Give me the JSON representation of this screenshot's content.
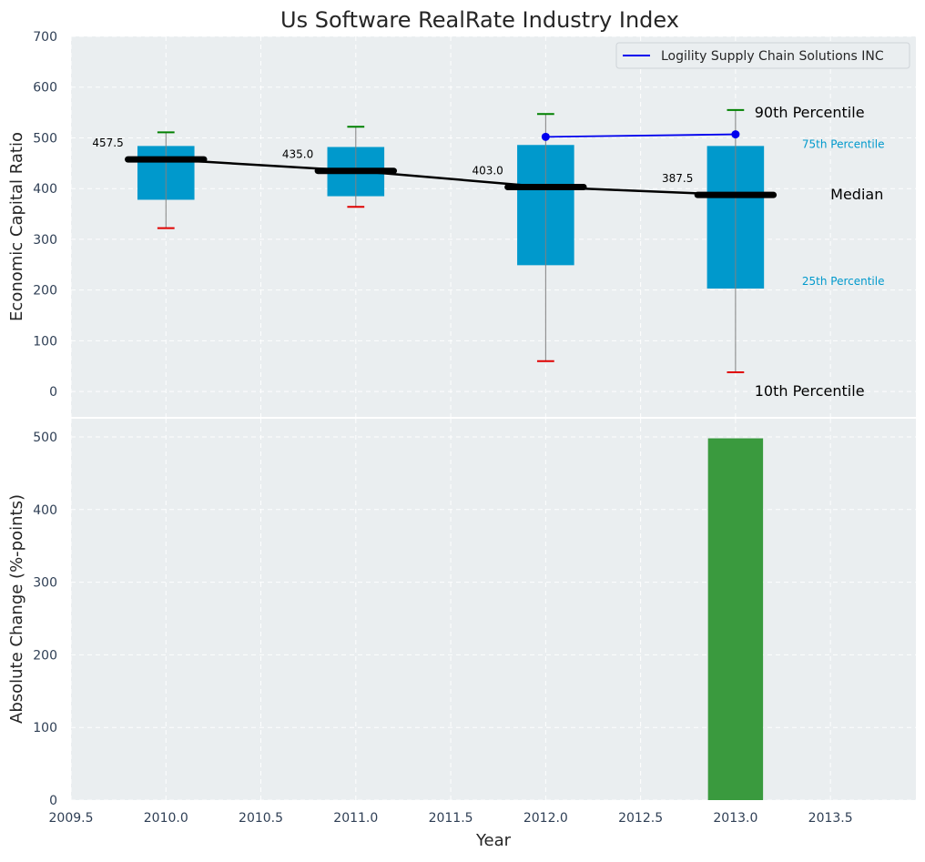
{
  "chart_data": [
    {
      "type": "box",
      "title": "Us Software RealRate Industry Index",
      "ylabel": "Economic Capital Ratio",
      "xlim": [
        2009.5,
        2013.95
      ],
      "ylim": [
        -50,
        700
      ],
      "yticks": [
        0,
        100,
        200,
        300,
        400,
        500,
        600,
        700
      ],
      "grid": true,
      "legend": {
        "position": "top-right",
        "entries": [
          "Logility Supply Chain Solutions INC"
        ]
      },
      "boxes": [
        {
          "x": 2010,
          "p10": 322,
          "p25": 378,
          "median": 457.5,
          "p75": 484,
          "p90": 511
        },
        {
          "x": 2011,
          "p10": 364,
          "p25": 385,
          "median": 435.0,
          "p75": 482,
          "p90": 522
        },
        {
          "x": 2012,
          "p10": 60,
          "p25": 249,
          "median": 403.0,
          "p75": 486,
          "p90": 547
        },
        {
          "x": 2013,
          "p10": 38,
          "p25": 203,
          "median": 387.5,
          "p75": 484,
          "p90": 555
        }
      ],
      "median_labels": [
        "457.5",
        "435.0",
        "403.0",
        "387.5"
      ],
      "company_series": {
        "name": "Logility Supply Chain Solutions INC",
        "x": [
          2012,
          2013
        ],
        "values": [
          502,
          507
        ]
      },
      "annotations": {
        "p90": "90th Percentile",
        "p75": "75th Percentile",
        "median": "Median",
        "p25": "25th Percentile",
        "p10": "10th Percentile"
      },
      "colors": {
        "box": "#0099cc",
        "median_line": "#000000",
        "company": "#0000ee",
        "p90_cap": "#008000",
        "p10_cap": "#e00000",
        "whisker": "#808080",
        "p75_p25_text": "#0099cc",
        "background": "#eaeef0"
      }
    },
    {
      "type": "bar",
      "ylabel": "Absolute Change (%-points)",
      "xlabel": "Year",
      "xlim": [
        2009.5,
        2013.95
      ],
      "ylim": [
        0,
        525
      ],
      "yticks": [
        0,
        100,
        200,
        300,
        400,
        500
      ],
      "xticks": [
        "2009.5",
        "2010.0",
        "2010.5",
        "2011.0",
        "2011.5",
        "2012.0",
        "2012.5",
        "2013.0",
        "2013.5"
      ],
      "x": [
        2013
      ],
      "values": [
        498
      ],
      "grid": true,
      "colors": {
        "bar": "#3a9a3e"
      }
    }
  ]
}
